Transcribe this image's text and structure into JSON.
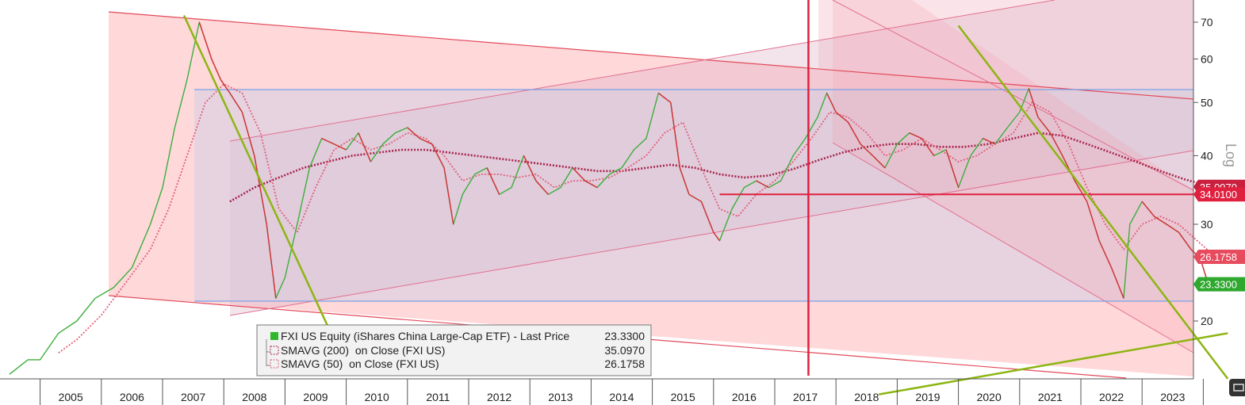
{
  "chart_data": {
    "type": "line",
    "title": "",
    "xlabel": "",
    "ylabel": "",
    "y_scale": "log",
    "y_scale_label": "Log",
    "x_tick_labels": [
      "2005",
      "2006",
      "2007",
      "2008",
      "2009",
      "2010",
      "2011",
      "2012",
      "2013",
      "2014",
      "2015",
      "2016",
      "2017",
      "2018",
      "2019",
      "2020",
      "2021",
      "2022",
      "2023"
    ],
    "y_ticks": [
      20,
      30,
      40,
      50,
      60,
      70
    ],
    "grid": false,
    "legend_position": "bottom-center",
    "legend": [
      {
        "label": "FXI US Equity (iShares China Large-Cap ETF) - Last Price",
        "value": "23.3300",
        "color": "#2eb82e",
        "style": "solid"
      },
      {
        "label": "SMAVG (200)  on Close (FXI US)",
        "value": "35.0970",
        "color": "#a8234a",
        "style": "dotted"
      },
      {
        "label": "SMAVG (50)  on Close (FXI US)",
        "value": "26.1758",
        "color": "#e0607a",
        "style": "dotted"
      }
    ],
    "price_tags": [
      {
        "label": "35.0970",
        "value": 35.097,
        "color": "#c9203f"
      },
      {
        "label": "34.0100",
        "value": 34.01,
        "color": "#e0203f"
      },
      {
        "label": "26.1758",
        "value": 26.1758,
        "color": "#e64b5e"
      },
      {
        "label": "23.3300",
        "value": 23.33,
        "color": "#2ea82e"
      }
    ],
    "series": [
      {
        "name": "FXI US Equity (iShares China Large-Cap ETF) - Last Price",
        "x": [
          2004.5,
          2004.8,
          2005.0,
          2005.3,
          2005.6,
          2005.9,
          2006.2,
          2006.5,
          2006.8,
          2007.0,
          2007.2,
          2007.4,
          2007.6,
          2007.8,
          2007.95,
          2008.1,
          2008.3,
          2008.5,
          2008.7,
          2008.85,
          2009.0,
          2009.2,
          2009.4,
          2009.6,
          2009.8,
          2010.0,
          2010.2,
          2010.4,
          2010.6,
          2010.8,
          2011.0,
          2011.2,
          2011.4,
          2011.6,
          2011.75,
          2011.9,
          2012.1,
          2012.3,
          2012.5,
          2012.7,
          2012.9,
          2013.1,
          2013.3,
          2013.5,
          2013.7,
          2013.9,
          2014.1,
          2014.3,
          2014.5,
          2014.7,
          2014.9,
          2015.1,
          2015.3,
          2015.45,
          2015.6,
          2015.8,
          2016.0,
          2016.1,
          2016.3,
          2016.5,
          2016.7,
          2016.9,
          2017.1,
          2017.3,
          2017.5,
          2017.7,
          2017.85,
          2018.0,
          2018.2,
          2018.4,
          2018.6,
          2018.8,
          2019.0,
          2019.2,
          2019.4,
          2019.6,
          2019.8,
          2020.0,
          2020.2,
          2020.4,
          2020.6,
          2020.8,
          2021.0,
          2021.15,
          2021.3,
          2021.5,
          2021.7,
          2021.9,
          2022.1,
          2022.3,
          2022.5,
          2022.7,
          2022.8,
          2023.0,
          2023.2,
          2023.4,
          2023.6,
          2023.8,
          2023.95,
          2024.1,
          2024.2
        ],
        "y": [
          16,
          17,
          17,
          19,
          20,
          22,
          23,
          25,
          30,
          35,
          45,
          55,
          70,
          60,
          55,
          52,
          48,
          40,
          30,
          22,
          24,
          30,
          38,
          43,
          42,
          41,
          44,
          39,
          42,
          44,
          45,
          43,
          42,
          38,
          30,
          34,
          37,
          38,
          34,
          35,
          40,
          36,
          34,
          35,
          38,
          36,
          35,
          37,
          38,
          41,
          43,
          52,
          50,
          38,
          34,
          33,
          29,
          28,
          32,
          35,
          36,
          35,
          36,
          40,
          43,
          47,
          52,
          48,
          46,
          42,
          40,
          38,
          42,
          44,
          43,
          40,
          41,
          35,
          40,
          43,
          42,
          45,
          48,
          53,
          47,
          44,
          40,
          36,
          33,
          28,
          25,
          22,
          30,
          33,
          31,
          30,
          29,
          27,
          26,
          23,
          23.33
        ]
      },
      {
        "name": "SMAVG (200)  on Close (FXI US)",
        "x": [
          2008.1,
          2008.5,
          2008.9,
          2009.3,
          2009.7,
          2010.1,
          2010.5,
          2010.9,
          2011.3,
          2011.7,
          2012.1,
          2012.5,
          2012.9,
          2013.3,
          2013.7,
          2014.1,
          2014.5,
          2014.9,
          2015.3,
          2015.7,
          2016.1,
          2016.5,
          2016.9,
          2017.3,
          2017.7,
          2018.1,
          2018.5,
          2018.9,
          2019.3,
          2019.7,
          2020.1,
          2020.5,
          2020.9,
          2021.3,
          2021.7,
          2022.1,
          2022.5,
          2022.9,
          2023.3,
          2023.7,
          2024.1,
          2024.2
        ],
        "y": [
          33,
          35,
          36.5,
          38,
          39,
          40,
          40.5,
          41,
          41,
          40.5,
          40,
          39.5,
          39,
          38.5,
          38,
          37.5,
          37.5,
          38,
          38.5,
          38,
          37,
          36.5,
          36.8,
          37.8,
          39.2,
          40.5,
          41.5,
          42,
          42,
          41.5,
          41.5,
          42,
          43,
          44,
          43.5,
          42,
          40.5,
          39,
          37.5,
          36.2,
          35.2,
          35.097
        ]
      },
      {
        "name": "SMAVG (50)  on Close (FXI US)",
        "x": [
          2005.3,
          2005.6,
          2006.0,
          2006.4,
          2006.8,
          2007.1,
          2007.4,
          2007.7,
          2008.0,
          2008.3,
          2008.6,
          2008.9,
          2009.2,
          2009.5,
          2009.8,
          2010.1,
          2010.4,
          2010.7,
          2011.0,
          2011.3,
          2011.6,
          2011.9,
          2012.2,
          2012.5,
          2012.8,
          2013.1,
          2013.4,
          2013.7,
          2014.0,
          2014.3,
          2014.6,
          2014.9,
          2015.2,
          2015.5,
          2015.8,
          2016.1,
          2016.4,
          2016.7,
          2017.0,
          2017.3,
          2017.6,
          2017.9,
          2018.2,
          2018.5,
          2018.8,
          2019.1,
          2019.4,
          2019.7,
          2020.0,
          2020.3,
          2020.6,
          2020.9,
          2021.2,
          2021.5,
          2021.8,
          2022.1,
          2022.4,
          2022.7,
          2023.0,
          2023.3,
          2023.6,
          2023.9,
          2024.2
        ],
        "y": [
          17.5,
          18.5,
          20.5,
          23.5,
          27,
          32,
          40,
          50,
          54,
          52,
          44,
          32,
          29,
          35,
          41,
          43,
          41,
          42,
          44,
          43,
          40,
          36,
          37,
          37,
          36.5,
          37,
          35,
          36,
          36,
          36.5,
          38,
          40,
          44,
          46,
          38,
          32,
          31,
          34,
          36,
          39,
          43,
          48,
          47,
          44,
          40,
          41,
          43,
          41,
          39,
          40,
          42,
          44,
          50,
          48,
          42,
          35,
          30,
          27,
          30,
          31,
          30,
          28,
          26.1758
        ]
      }
    ],
    "annotations": {
      "horizontal_line": {
        "value": 34.01,
        "from_year": 2016.1,
        "to_year": 2024.4,
        "color": "#e0203f"
      },
      "vertical_line": {
        "year": 2017.55,
        "color": "#e0203f"
      },
      "range_band": {
        "low": 23.0,
        "high": 52.8,
        "from_year": 2007.5,
        "to_year": 2024.4
      },
      "trendlines": [
        {
          "from": [
            2007.35,
            72
          ],
          "to": [
            2009.9,
            17.5
          ],
          "color": "#8db512"
        },
        {
          "from": [
            2020.0,
            69
          ],
          "to": [
            2024.4,
            15.7
          ],
          "color": "#8db512"
        },
        {
          "from": [
            2018.7,
            14.7
          ],
          "to": [
            2024.4,
            19.0
          ],
          "color": "#8db512"
        }
      ]
    }
  }
}
